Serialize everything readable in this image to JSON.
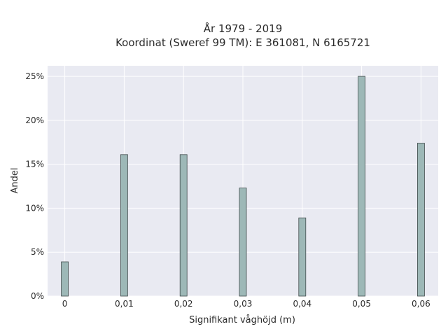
{
  "chart_data": {
    "type": "bar",
    "title_lines": [
      "År 1979 - 2019",
      "Koordinat (Sweref 99 TM): E 361081, N 6165721"
    ],
    "xlabel": "Signifikant våghöjd (m)",
    "ylabel": "Andel",
    "categories": [
      "0",
      "0,01",
      "0,02",
      "0,03",
      "0,04",
      "0,05",
      "0,06"
    ],
    "x": [
      0,
      0.01,
      0.02,
      0.03,
      0.04,
      0.05,
      0.06
    ],
    "values": [
      3.9,
      16.1,
      16.1,
      12.3,
      8.9,
      25.0,
      17.4
    ],
    "y_ticks": [
      0,
      5,
      10,
      15,
      20,
      25
    ],
    "y_tick_labels": [
      "0%",
      "5%",
      "10%",
      "15%",
      "20%",
      "25%"
    ],
    "xlim": [
      -0.0029,
      0.0629
    ],
    "ylim": [
      0,
      26.2
    ],
    "grid": true,
    "colors": {
      "plot_bg": "#e9eaf2",
      "grid": "#ffffff",
      "bar_fill": "#9db8b7",
      "bar_stroke": "#3f4a4a"
    }
  }
}
